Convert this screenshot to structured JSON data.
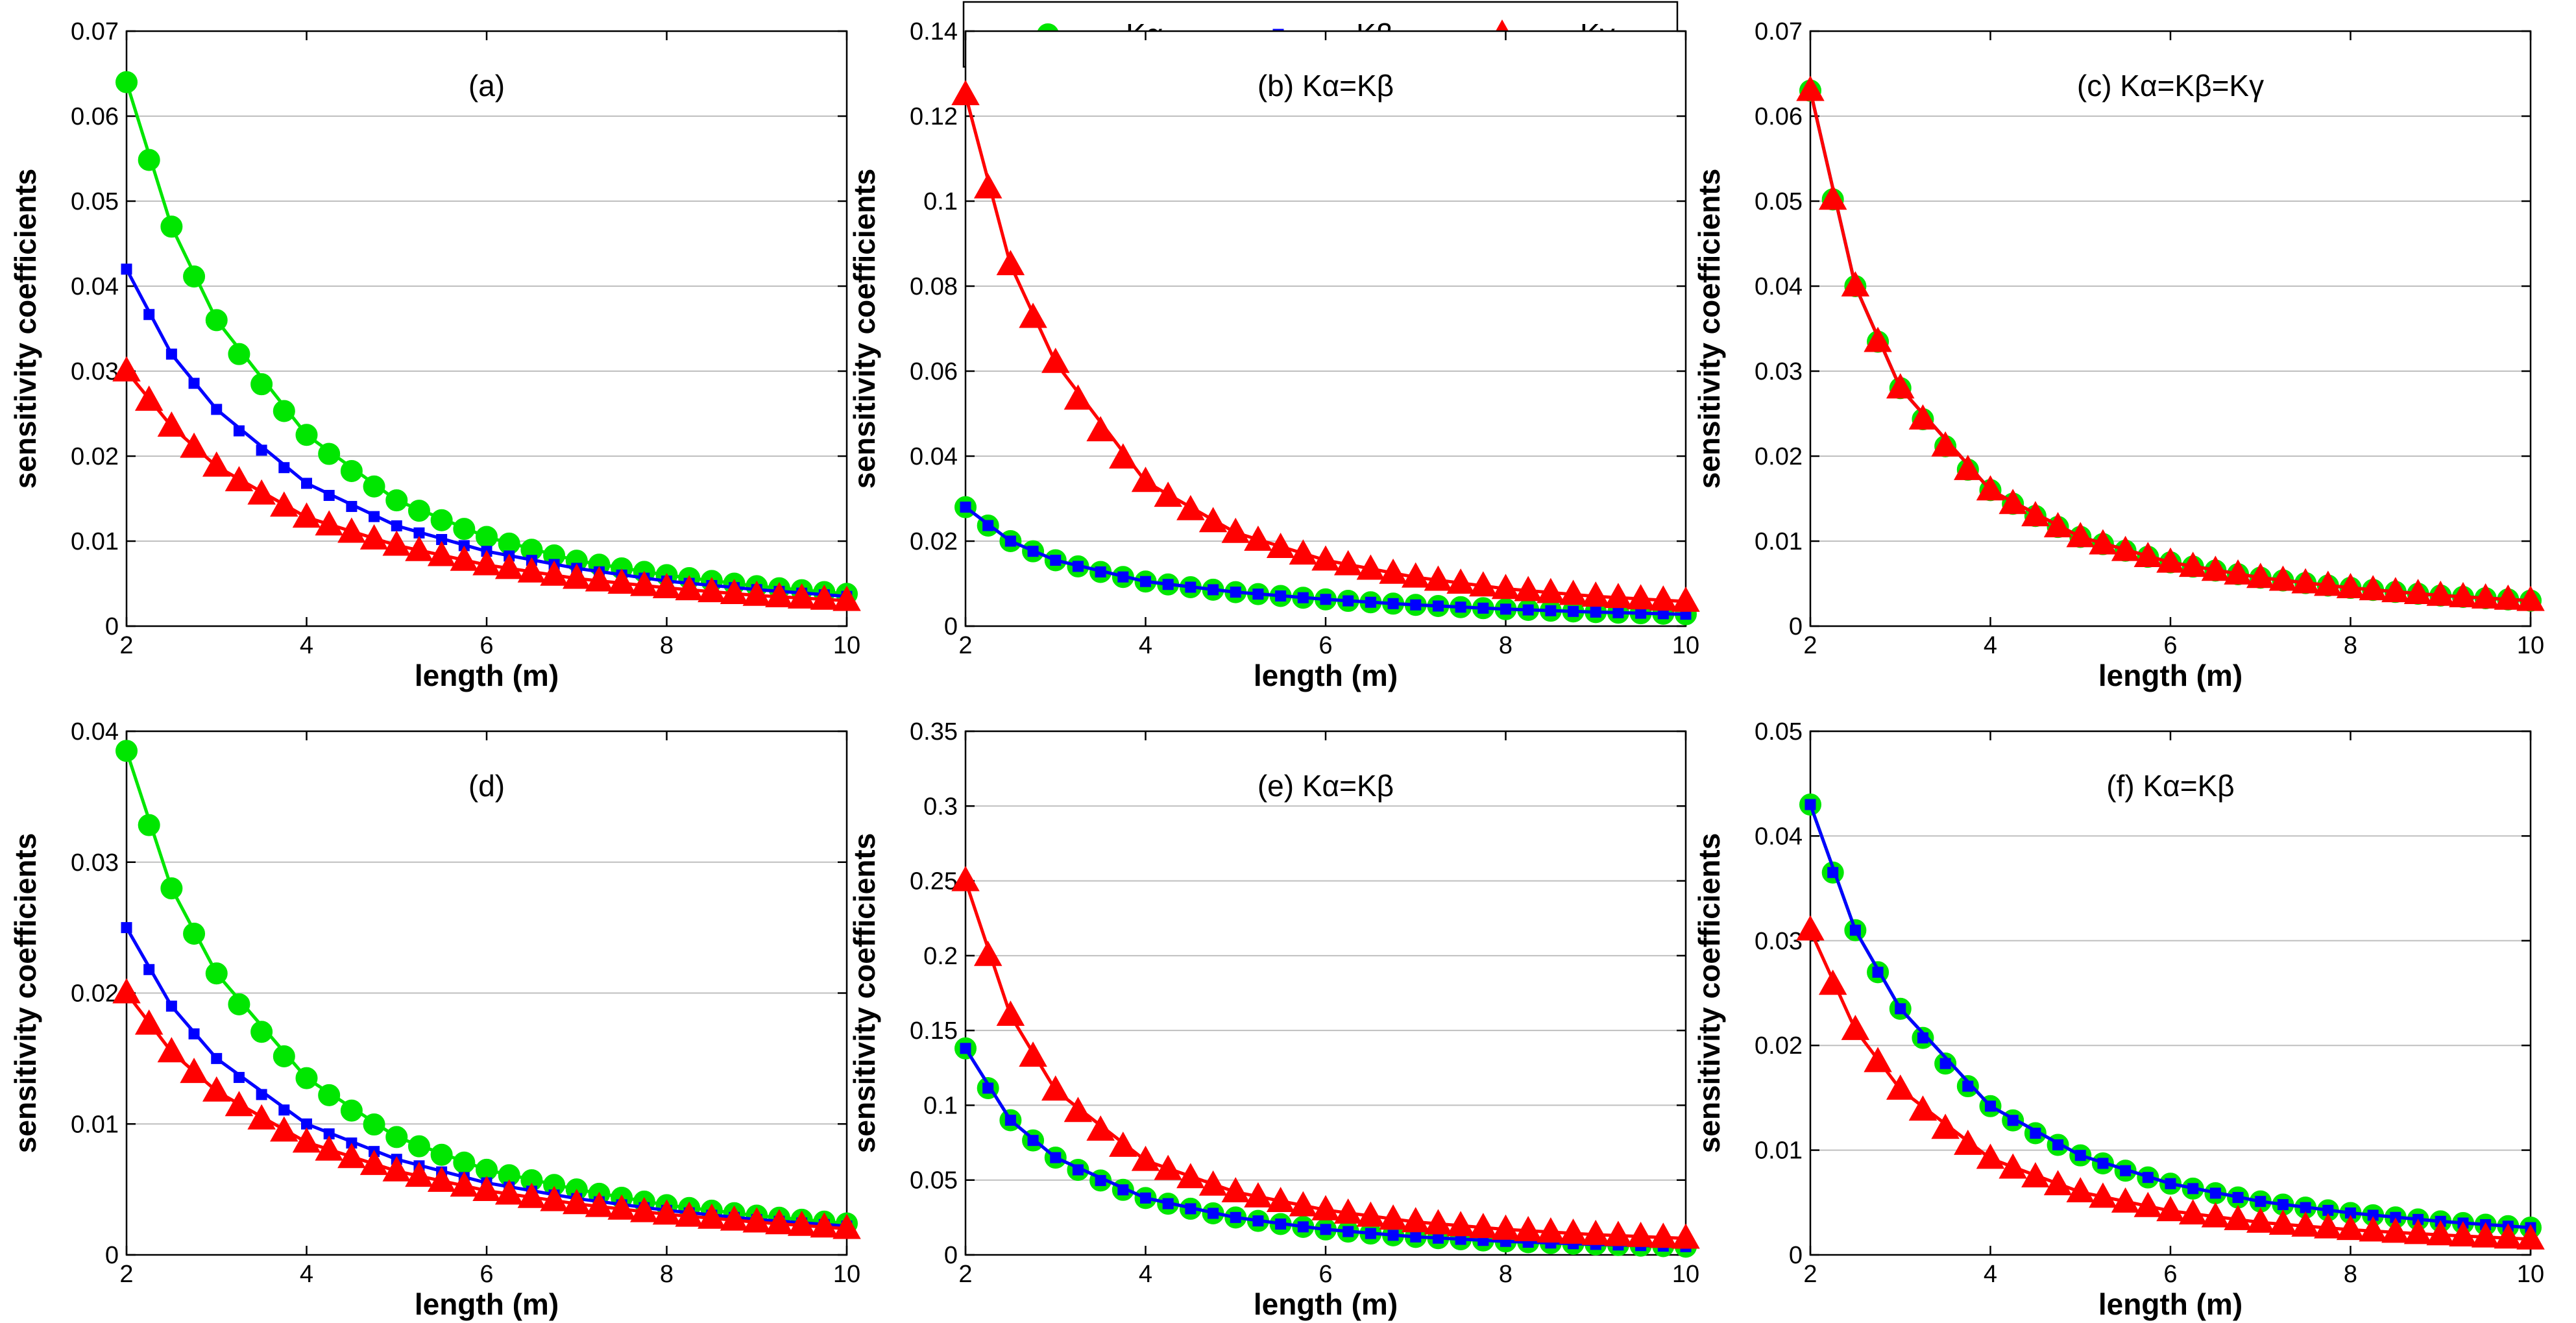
{
  "colors": {
    "k_alpha": "#00e600",
    "k_beta": "#0000ff",
    "k_gamma": "#ff0000",
    "grid": "#bfbfbf",
    "axis": "#000000"
  },
  "legend": {
    "placement": "top-center",
    "items": [
      {
        "label": "Kα",
        "color": "#00e600",
        "marker": "circle"
      },
      {
        "label": "Kβ",
        "color": "#0000ff",
        "marker": "square"
      },
      {
        "label": "Kγ",
        "color": "#ff0000",
        "marker": "triangle"
      }
    ]
  },
  "chart_data": [
    {
      "type": "line",
      "title": "(a)",
      "xlabel": "length (m)",
      "ylabel": "sensitivity coefficients",
      "xlim": [
        2,
        10
      ],
      "ylim": [
        0,
        0.07
      ],
      "xticks": [
        2,
        4,
        6,
        8,
        10
      ],
      "yticks": [
        0,
        0.01,
        0.02,
        0.03,
        0.04,
        0.05,
        0.06,
        0.07
      ],
      "ytick_labels": [
        "0",
        "0.01",
        "0.02",
        "0.03",
        "0.04",
        "0.05",
        "0.06",
        "0.07"
      ],
      "grid": true,
      "series": [
        {
          "name": "Kα",
          "x": [
            2,
            2.5,
            3,
            4,
            5,
            6,
            7,
            8,
            9,
            10
          ],
          "values": [
            0.064,
            0.047,
            0.036,
            0.0225,
            0.0148,
            0.0105,
            0.0077,
            0.006,
            0.0047,
            0.0038
          ]
        },
        {
          "name": "Kβ",
          "x": [
            2,
            2.5,
            3,
            4,
            5,
            6,
            7,
            8,
            9,
            10
          ],
          "values": [
            0.042,
            0.032,
            0.0255,
            0.0168,
            0.0118,
            0.0088,
            0.0068,
            0.0053,
            0.0043,
            0.0035
          ]
        },
        {
          "name": "Kγ",
          "x": [
            2,
            2.5,
            3,
            4,
            5,
            6,
            7,
            8,
            9,
            10
          ],
          "values": [
            0.03,
            0.0235,
            0.0188,
            0.0128,
            0.0095,
            0.0072,
            0.0056,
            0.0045,
            0.0036,
            0.003
          ]
        }
      ]
    },
    {
      "type": "line",
      "title": "(b) Kα=Kβ",
      "xlabel": "length (m)",
      "ylabel": "sensitivity coefficients",
      "xlim": [
        2,
        10
      ],
      "ylim": [
        0,
        0.14
      ],
      "xticks": [
        2,
        4,
        6,
        8,
        10
      ],
      "yticks": [
        0,
        0.02,
        0.04,
        0.06,
        0.08,
        0.1,
        0.12,
        0.14
      ],
      "ytick_labels": [
        "0",
        "0.02",
        "0.04",
        "0.06",
        "0.08",
        "0.1",
        "0.12",
        "0.14"
      ],
      "grid": true,
      "series": [
        {
          "name": "Kα",
          "x": [
            2,
            2.5,
            3,
            4,
            5,
            6,
            7,
            8,
            9,
            10
          ],
          "values": [
            0.028,
            0.02,
            0.0155,
            0.0105,
            0.008,
            0.0063,
            0.005,
            0.004,
            0.0033,
            0.0028
          ]
        },
        {
          "name": "Kβ",
          "x": [
            2,
            2.5,
            3,
            4,
            5,
            6,
            7,
            8,
            9,
            10
          ],
          "values": [
            0.028,
            0.02,
            0.0155,
            0.0105,
            0.008,
            0.0063,
            0.005,
            0.004,
            0.0033,
            0.0028
          ]
        },
        {
          "name": "Kγ",
          "x": [
            2,
            2.5,
            3,
            4,
            5,
            6,
            7,
            8,
            9,
            10
          ],
          "values": [
            0.125,
            0.085,
            0.062,
            0.034,
            0.022,
            0.0155,
            0.0115,
            0.0088,
            0.007,
            0.0058
          ]
        }
      ]
    },
    {
      "type": "line",
      "title": "(c) Kα=Kβ=Kγ",
      "xlabel": "length (m)",
      "ylabel": "sensitivity coefficients",
      "xlim": [
        2,
        10
      ],
      "ylim": [
        0,
        0.07
      ],
      "xticks": [
        2,
        4,
        6,
        8,
        10
      ],
      "yticks": [
        0,
        0.01,
        0.02,
        0.03,
        0.04,
        0.05,
        0.06,
        0.07
      ],
      "ytick_labels": [
        "0",
        "0.01",
        "0.02",
        "0.03",
        "0.04",
        "0.05",
        "0.06",
        "0.07"
      ],
      "grid": true,
      "series": [
        {
          "name": "Kα",
          "x": [
            2,
            2.5,
            3,
            4,
            5,
            6,
            7,
            8,
            9,
            10
          ],
          "values": [
            0.063,
            0.04,
            0.028,
            0.016,
            0.0105,
            0.0075,
            0.0057,
            0.0045,
            0.0036,
            0.003
          ]
        },
        {
          "name": "Kβ",
          "x": [
            2,
            2.5,
            3,
            4,
            5,
            6,
            7,
            8,
            9,
            10
          ],
          "values": [
            0.063,
            0.04,
            0.028,
            0.016,
            0.0105,
            0.0075,
            0.0057,
            0.0045,
            0.0036,
            0.003
          ]
        },
        {
          "name": "Kγ",
          "x": [
            2,
            2.5,
            3,
            4,
            5,
            6,
            7,
            8,
            9,
            10
          ],
          "values": [
            0.063,
            0.04,
            0.028,
            0.016,
            0.0105,
            0.0075,
            0.0057,
            0.0045,
            0.0036,
            0.003
          ]
        }
      ]
    },
    {
      "type": "line",
      "title": "(d)",
      "xlabel": "length (m)",
      "ylabel": "sensitivity coefficients",
      "xlim": [
        2,
        10
      ],
      "ylim": [
        0,
        0.04
      ],
      "xticks": [
        2,
        4,
        6,
        8,
        10
      ],
      "yticks": [
        0,
        0.01,
        0.02,
        0.03,
        0.04
      ],
      "ytick_labels": [
        "0",
        "0.01",
        "0.02",
        "0.03",
        "0.04"
      ],
      "grid": true,
      "series": [
        {
          "name": "Kα",
          "x": [
            2,
            2.5,
            3,
            4,
            5,
            6,
            7,
            8,
            9,
            10
          ],
          "values": [
            0.0385,
            0.028,
            0.0215,
            0.0135,
            0.009,
            0.0065,
            0.005,
            0.0038,
            0.003,
            0.0024
          ]
        },
        {
          "name": "Kβ",
          "x": [
            2,
            2.5,
            3,
            4,
            5,
            6,
            7,
            8,
            9,
            10
          ],
          "values": [
            0.025,
            0.019,
            0.015,
            0.01,
            0.0073,
            0.0055,
            0.0043,
            0.0034,
            0.0027,
            0.0022
          ]
        },
        {
          "name": "Kγ",
          "x": [
            2,
            2.5,
            3,
            4,
            5,
            6,
            7,
            8,
            9,
            10
          ],
          "values": [
            0.02,
            0.0155,
            0.0125,
            0.0086,
            0.0064,
            0.0049,
            0.0039,
            0.0031,
            0.0025,
            0.002
          ]
        }
      ]
    },
    {
      "type": "line",
      "title": "(e) Kα=Kβ",
      "xlabel": "length (m)",
      "ylabel": "sensitivity coefficients",
      "xlim": [
        2,
        10
      ],
      "ylim": [
        0,
        0.35
      ],
      "xticks": [
        2,
        4,
        6,
        8,
        10
      ],
      "yticks": [
        0,
        0.05,
        0.1,
        0.15,
        0.2,
        0.25,
        0.3,
        0.35
      ],
      "ytick_labels": [
        "0",
        "0.05",
        "0.1",
        "0.15",
        "0.2",
        "0.25",
        "0.3",
        "0.35"
      ],
      "grid": true,
      "series": [
        {
          "name": "Kα",
          "x": [
            2,
            2.5,
            3,
            4,
            5,
            6,
            7,
            8,
            9,
            10
          ],
          "values": [
            0.138,
            0.09,
            0.065,
            0.038,
            0.025,
            0.017,
            0.012,
            0.009,
            0.007,
            0.0055
          ]
        },
        {
          "name": "Kβ",
          "x": [
            2,
            2.5,
            3,
            4,
            5,
            6,
            7,
            8,
            9,
            10
          ],
          "values": [
            0.138,
            0.09,
            0.065,
            0.038,
            0.025,
            0.017,
            0.012,
            0.009,
            0.007,
            0.0055
          ]
        },
        {
          "name": "Kγ",
          "x": [
            2,
            2.5,
            3,
            4,
            5,
            6,
            7,
            8,
            9,
            10
          ],
          "values": [
            0.25,
            0.16,
            0.11,
            0.063,
            0.042,
            0.03,
            0.022,
            0.017,
            0.0135,
            0.011
          ]
        }
      ]
    },
    {
      "type": "line",
      "title": "(f) Kα=Kβ",
      "xlabel": "length (m)",
      "ylabel": "sensitivity coefficients",
      "xlim": [
        2,
        10
      ],
      "ylim": [
        0,
        0.05
      ],
      "xticks": [
        2,
        4,
        6,
        8,
        10
      ],
      "yticks": [
        0,
        0.01,
        0.02,
        0.03,
        0.04,
        0.05
      ],
      "ytick_labels": [
        "0",
        "0.01",
        "0.02",
        "0.03",
        "0.04",
        "0.05"
      ],
      "grid": true,
      "series": [
        {
          "name": "Kα",
          "x": [
            2,
            2.5,
            3,
            4,
            5,
            6,
            7,
            8,
            9,
            10
          ],
          "values": [
            0.043,
            0.031,
            0.0235,
            0.0142,
            0.0095,
            0.0068,
            0.0051,
            0.004,
            0.0032,
            0.0026
          ]
        },
        {
          "name": "Kβ",
          "x": [
            2,
            2.5,
            3,
            4,
            5,
            6,
            7,
            8,
            9,
            10
          ],
          "values": [
            0.043,
            0.031,
            0.0235,
            0.0142,
            0.0095,
            0.0068,
            0.0051,
            0.004,
            0.0032,
            0.0026
          ]
        },
        {
          "name": "Kγ",
          "x": [
            2,
            2.5,
            3,
            4,
            5,
            6,
            7,
            8,
            9,
            10
          ],
          "values": [
            0.031,
            0.0215,
            0.0158,
            0.0092,
            0.006,
            0.0042,
            0.0031,
            0.0024,
            0.0019,
            0.0015
          ]
        }
      ]
    }
  ]
}
